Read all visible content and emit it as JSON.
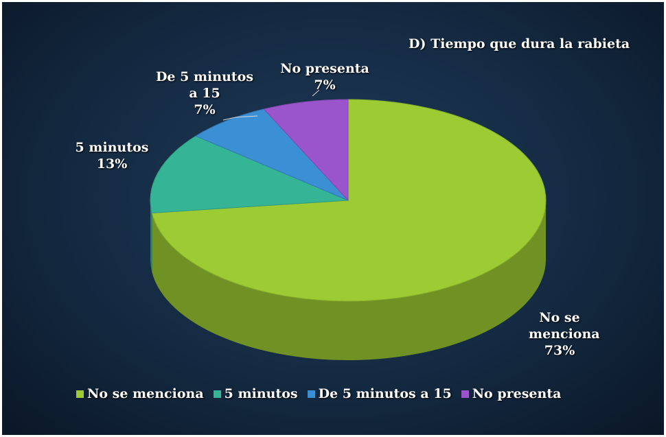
{
  "chart_data": {
    "type": "pie3d",
    "title": "D) Tiempo que dura la rabieta",
    "categories": [
      "No se menciona",
      "5 minutos",
      "De 5 minutos a 15",
      "No presenta"
    ],
    "values": [
      73,
      13,
      7,
      7
    ],
    "value_labels": [
      "73%",
      "13%",
      "7%",
      "7%"
    ],
    "colors": [
      "#9ccb34",
      "#36b596",
      "#3b8fd4",
      "#9a55cc"
    ],
    "legend": "bottom"
  }
}
